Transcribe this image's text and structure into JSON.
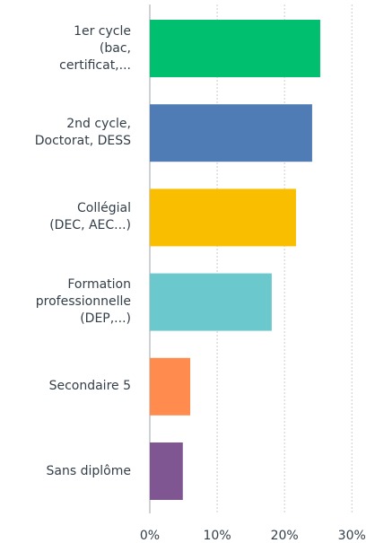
{
  "chart_data": {
    "type": "barh",
    "categories": [
      "1er cycle\n(bac,\ncertificat,...",
      "2nd cycle,\nDoctorat, DESS",
      "Collégial\n(DEC, AEC...)",
      "Formation\nprofessionnelle\n(DEP,...)",
      "Secondaire 5",
      "Sans diplôme"
    ],
    "values": [
      25.3,
      24.1,
      21.7,
      18.1,
      6.0,
      4.9
    ],
    "colors": [
      "#00bf6f",
      "#507cb6",
      "#f9be00",
      "#6bc8cd",
      "#ff8b4f",
      "#7f5691"
    ],
    "xlim": [
      0,
      33.3
    ],
    "xticks": [
      {
        "value": 0,
        "label": "0%"
      },
      {
        "value": 10,
        "label": "10%"
      },
      {
        "value": 20,
        "label": "20%"
      },
      {
        "value": 30,
        "label": "30%"
      }
    ],
    "grid": true
  }
}
